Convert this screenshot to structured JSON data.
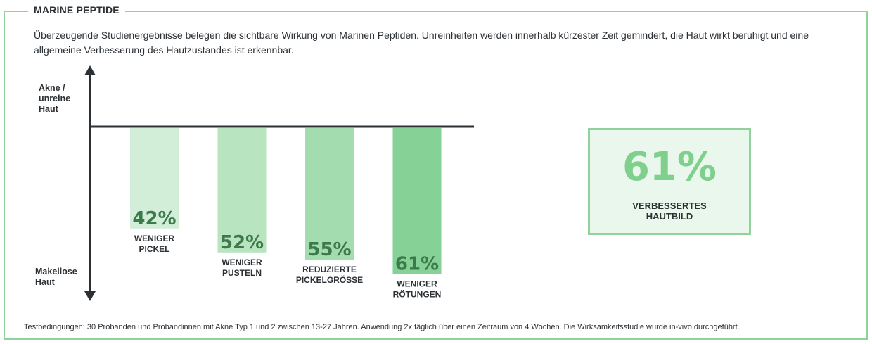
{
  "title": "MARINE PEPTIDE",
  "intro": "Überzeugende Studienergebnisse belegen die sichtbare Wirkung von Marinen Peptiden. Unreinheiten werden innerhalb kürzester Zeit gemindert, die Haut wirkt beruhigt und eine allgemeine Verbesserung des Hautzustandes ist erkennbar.",
  "axis_top_label": "Akne /\nunreine\nHaut",
  "axis_bottom_label": "Makellose\nHaut",
  "footnote": "Testbedingungen: 30 Probanden und Probandinnen mit Akne Typ 1 und 2 zwischen 13-27 Jahren. Anwendung 2x täglich über einen Zeitraum von 4 Wochen. Die Wirksamkeitsstudie wurde in-vivo durchgeführt.",
  "summary": {
    "value": "61%",
    "label": "VERBESSERTES\nHAUTBILD"
  },
  "colors": {
    "accent": "#8fd39a",
    "bars": [
      "#d3eed8",
      "#b8e4c0",
      "#a3dcaf",
      "#86d196"
    ],
    "bar_value_text": "#3d7a4b"
  },
  "chart_data": {
    "type": "bar",
    "orientation": "downward",
    "categories": [
      "WENIGER\nPICKEL",
      "WENIGER\nPUSTELN",
      "REDUZIERTE\nPICKELGRÖSSE",
      "WENIGER\nRÖTUNGEN"
    ],
    "values": [
      42,
      52,
      55,
      61
    ],
    "labels": [
      "42%",
      "52%",
      "55%",
      "61%"
    ],
    "ylim": [
      0,
      100
    ],
    "grid": false
  }
}
